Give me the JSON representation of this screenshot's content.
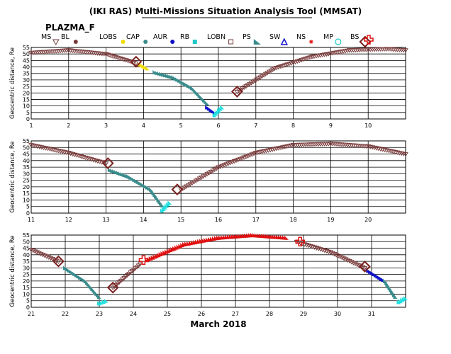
{
  "title": "(IKI RAS) Multi-Missions Situation Analysis Tool (MMSAT)",
  "mission": "PLAZMA_F",
  "legend": [
    {
      "label": "MS",
      "symbol": "tri-down",
      "color": "#7a3b3b"
    },
    {
      "label": "BL",
      "symbol": "dot",
      "color": "#7a3b3b"
    },
    {
      "label": "LOBS",
      "symbol": "dot",
      "color": "#f0dc00"
    },
    {
      "label": "CAP",
      "symbol": "dot",
      "color": "#3a8c8c"
    },
    {
      "label": "AUR",
      "symbol": "dot",
      "color": "#1010c8"
    },
    {
      "label": "RB",
      "symbol": "square",
      "color": "#20c8c8"
    },
    {
      "label": "LOBN",
      "symbol": "square-open",
      "color": "#7a3b3b"
    },
    {
      "label": "PS",
      "symbol": "tri-solid",
      "color": "#3a8c8c"
    },
    {
      "label": "SW",
      "symbol": "tri-up",
      "color": "#1010c8"
    },
    {
      "label": "NS",
      "symbol": "star",
      "color": "#e01010"
    },
    {
      "label": "MP",
      "symbol": "circle",
      "color": "#20c8c8"
    },
    {
      "label": "BS",
      "symbol": "diamond",
      "color": "#7a2020"
    },
    {
      "label": "",
      "symbol": "cross",
      "color": "#e01010"
    }
  ],
  "chart_data": [
    {
      "type": "scatter",
      "ylabel": "Geocentric distance, Re",
      "xlim": [
        1,
        11
      ],
      "ylim": [
        0,
        55
      ],
      "xticks": [
        "1",
        "2",
        "3",
        "4",
        "5",
        "6",
        "7",
        "8",
        "9",
        "10"
      ],
      "yticks": [
        "0",
        "5",
        "10",
        "15",
        "20",
        "25",
        "30",
        "35",
        "40",
        "45",
        "50",
        "55"
      ],
      "series": [
        {
          "region": "MS",
          "x": [
            1,
            2,
            3,
            3.8
          ],
          "y": [
            51,
            53,
            50,
            43
          ]
        },
        {
          "region": "LOBS",
          "x": [
            3.9,
            4.1
          ],
          "y": [
            42,
            39
          ]
        },
        {
          "region": "PS",
          "x": [
            4.3,
            4.8,
            5.3,
            5.7
          ],
          "y": [
            36,
            32,
            24,
            12
          ]
        },
        {
          "region": "AUR",
          "x": [
            5.7,
            5.9
          ],
          "y": [
            9,
            5
          ]
        },
        {
          "region": "RB",
          "x": [
            5.9,
            6.1
          ],
          "y": [
            3,
            9
          ]
        },
        {
          "region": "MS",
          "x": [
            6.5,
            7.5,
            8.5,
            9.5,
            10.5,
            11
          ],
          "y": [
            21,
            39,
            48,
            53,
            54,
            53
          ]
        }
      ],
      "bs_crossings": [
        {
          "x": 3.8,
          "y": 44
        },
        {
          "x": 6.5,
          "y": 21
        }
      ]
    },
    {
      "type": "scatter",
      "ylabel": "Geocentric distance, Re",
      "xlim": [
        11,
        21
      ],
      "ylim": [
        0,
        55
      ],
      "xticks": [
        "11",
        "12",
        "13",
        "14",
        "15",
        "16",
        "17",
        "18",
        "19",
        "20"
      ],
      "yticks": [
        "0",
        "5",
        "10",
        "15",
        "20",
        "25",
        "30",
        "35",
        "40",
        "45",
        "50",
        "55"
      ],
      "series": [
        {
          "region": "MS",
          "x": [
            11,
            12,
            13
          ],
          "y": [
            52,
            46,
            38
          ]
        },
        {
          "region": "PS",
          "x": [
            13.1,
            13.6,
            14.2,
            14.5
          ],
          "y": [
            33,
            28,
            18,
            6
          ]
        },
        {
          "region": "RB",
          "x": [
            14.5,
            14.7
          ],
          "y": [
            2,
            8
          ]
        },
        {
          "region": "MS",
          "x": [
            15,
            16,
            17,
            18,
            19,
            20,
            21
          ],
          "y": [
            18,
            35,
            46,
            52,
            53,
            51,
            45
          ]
        }
      ],
      "bs_crossings": [
        {
          "x": 13.05,
          "y": 38
        },
        {
          "x": 14.9,
          "y": 18
        }
      ]
    },
    {
      "type": "scatter",
      "xlabel": "March 2018",
      "ylabel": "Geocentric distance, Re",
      "xlim": [
        21,
        32
      ],
      "ylim": [
        0,
        55
      ],
      "xticks": [
        "21",
        "22",
        "23",
        "24",
        "25",
        "26",
        "27",
        "28",
        "29",
        "30",
        "31"
      ],
      "yticks": [
        "0",
        "5",
        "10",
        "15",
        "20",
        "25",
        "30",
        "35",
        "40",
        "45",
        "50",
        "55"
      ],
      "series": [
        {
          "region": "MS",
          "x": [
            21,
            21.8
          ],
          "y": [
            44,
            35
          ]
        },
        {
          "region": "PS",
          "x": [
            22,
            22.6,
            23
          ],
          "y": [
            30,
            20,
            8
          ]
        },
        {
          "region": "RB",
          "x": [
            23,
            23.2
          ],
          "y": [
            3,
            5
          ]
        },
        {
          "region": "MS",
          "x": [
            23.4,
            24.2
          ],
          "y": [
            15,
            33
          ]
        },
        {
          "region": "NS",
          "x": [
            24.4,
            25.5,
            26.5,
            27.5,
            28.5
          ],
          "y": [
            36,
            48,
            53,
            55,
            53
          ]
        },
        {
          "region": "MS",
          "x": [
            28.8,
            29.8,
            30.8
          ],
          "y": [
            50,
            42,
            30
          ]
        },
        {
          "region": "AUR",
          "x": [
            30.9,
            31.4
          ],
          "y": [
            28,
            20
          ]
        },
        {
          "region": "PS",
          "x": [
            31.4,
            31.7
          ],
          "y": [
            20,
            8
          ]
        },
        {
          "region": "RB",
          "x": [
            31.8,
            32
          ],
          "y": [
            4,
            7
          ]
        }
      ],
      "bs_crossings": [
        {
          "x": 21.8,
          "y": 35
        },
        {
          "x": 23.4,
          "y": 15
        },
        {
          "x": 30.8,
          "y": 31
        }
      ],
      "mp_crossings": [
        {
          "x": 24.3,
          "y": 36
        },
        {
          "x": 28.9,
          "y": 50
        }
      ]
    }
  ]
}
